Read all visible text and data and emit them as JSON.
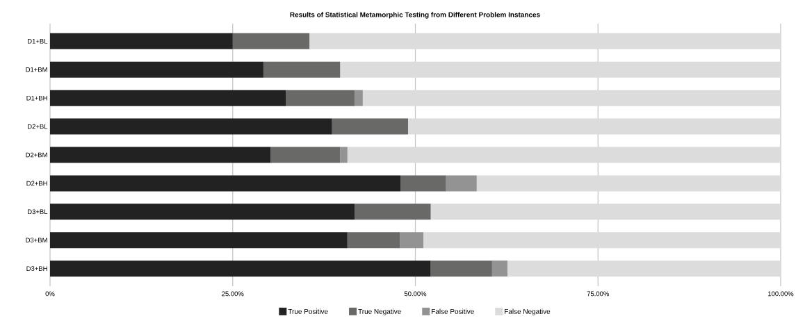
{
  "chart_data": {
    "type": "bar",
    "orientation": "horizontal",
    "stacked": true,
    "title": "Results of Statistical Metamorphic Testing from Different Problem Instances",
    "categories": [
      "D1+BL",
      "D1+BM",
      "D1+BH",
      "D2+BL",
      "D2+BM",
      "D2+BH",
      "D3+BL",
      "D3+BM",
      "D3+BH"
    ],
    "series": [
      {
        "name": "True Positive",
        "color": "#222222",
        "values": [
          25.0,
          29.2,
          32.3,
          38.6,
          30.2,
          48.0,
          41.7,
          40.7,
          52.1
        ]
      },
      {
        "name": "True Negative",
        "color": "#696967",
        "values": [
          10.5,
          10.5,
          9.4,
          10.4,
          9.5,
          6.2,
          10.4,
          7.2,
          8.4
        ]
      },
      {
        "name": "False Positive",
        "color": "#939393",
        "values": [
          0,
          0,
          1.1,
          0,
          1.0,
          4.2,
          0,
          3.2,
          2.1
        ]
      },
      {
        "name": "False Negative",
        "color": "#dcdcdc",
        "values": [
          64.5,
          60.3,
          57.2,
          51.0,
          59.3,
          41.6,
          47.9,
          48.9,
          37.4
        ]
      }
    ],
    "xlim": [
      0,
      100
    ],
    "xticks": [
      {
        "value": 0,
        "label": "0%"
      },
      {
        "value": 25,
        "label": "25.00%"
      },
      {
        "value": 50,
        "label": "50.00%"
      },
      {
        "value": 75,
        "label": "75.00%"
      },
      {
        "value": 100,
        "label": "100.00%"
      }
    ],
    "grid": "x",
    "legend": "bottom"
  }
}
